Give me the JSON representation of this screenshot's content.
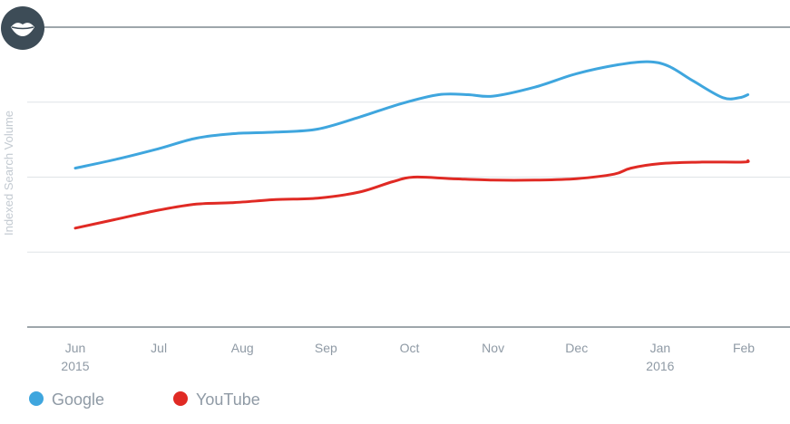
{
  "logo": {
    "icon": "lips-icon",
    "background": "#3d4c57"
  },
  "chart_data": {
    "type": "line",
    "ylabel": "Indexed Search Volume",
    "xlabel": "",
    "title": "",
    "ylim": [
      0,
      100
    ],
    "grid": true,
    "legend_position": "bottom-left",
    "x_ticks": [
      {
        "label": "Jun",
        "sub": "2015",
        "t": 0.0
      },
      {
        "label": "Jul",
        "sub": "",
        "t": 1.0
      },
      {
        "label": "Aug",
        "sub": "",
        "t": 2.0
      },
      {
        "label": "Sep",
        "sub": "",
        "t": 3.0
      },
      {
        "label": "Oct",
        "sub": "",
        "t": 4.0
      },
      {
        "label": "Nov",
        "sub": "",
        "t": 5.0
      },
      {
        "label": "Dec",
        "sub": "",
        "t": 6.0
      },
      {
        "label": "Jan",
        "sub": "2016",
        "t": 7.0
      },
      {
        "label": "Feb",
        "sub": "",
        "t": 8.0
      }
    ],
    "series": [
      {
        "name": "Google",
        "color": "#3fa6de",
        "points": [
          [
            0.0,
            53
          ],
          [
            0.5,
            56
          ],
          [
            1.0,
            59.5
          ],
          [
            1.45,
            63
          ],
          [
            1.9,
            64.5
          ],
          [
            2.4,
            65
          ],
          [
            2.9,
            66
          ],
          [
            3.4,
            70
          ],
          [
            3.9,
            74.5
          ],
          [
            4.35,
            77.5
          ],
          [
            4.7,
            77.5
          ],
          [
            5.0,
            77
          ],
          [
            5.5,
            80
          ],
          [
            6.0,
            84.5
          ],
          [
            6.5,
            87.5
          ],
          [
            6.85,
            88.5
          ],
          [
            7.1,
            87
          ],
          [
            7.4,
            82
          ],
          [
            7.75,
            76.5
          ],
          [
            7.95,
            76.5
          ],
          [
            8.05,
            77.5
          ]
        ]
      },
      {
        "name": "YouTube",
        "color": "#e02a24",
        "points": [
          [
            0.0,
            33
          ],
          [
            0.5,
            36
          ],
          [
            1.0,
            39
          ],
          [
            1.45,
            41
          ],
          [
            1.9,
            41.5
          ],
          [
            2.4,
            42.5
          ],
          [
            2.9,
            43
          ],
          [
            3.4,
            45
          ],
          [
            3.8,
            48.5
          ],
          [
            4.05,
            50
          ],
          [
            4.5,
            49.5
          ],
          [
            5.0,
            49
          ],
          [
            5.5,
            49
          ],
          [
            6.0,
            49.5
          ],
          [
            6.45,
            51
          ],
          [
            6.65,
            53
          ],
          [
            7.0,
            54.5
          ],
          [
            7.5,
            55
          ],
          [
            8.0,
            55
          ],
          [
            8.05,
            55.5
          ]
        ]
      }
    ]
  }
}
